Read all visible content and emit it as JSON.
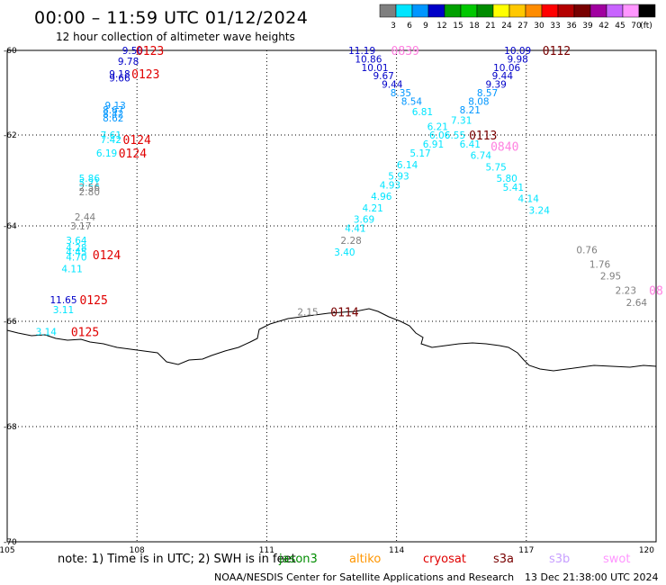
{
  "header": {
    "title": "00:00 – 11:59 UTC 01/12/2024",
    "subtitle": "12 hour collection of altimeter wave heights"
  },
  "legend": {
    "unit": "(ft)",
    "bins": [
      {
        "label": "3",
        "color": "#7f7f7f"
      },
      {
        "label": "6",
        "color": "#00e5ff"
      },
      {
        "label": "9",
        "color": "#0096ff"
      },
      {
        "label": "12",
        "color": "#0000c8"
      },
      {
        "label": "15",
        "color": "#00a000"
      },
      {
        "label": "18",
        "color": "#00c800"
      },
      {
        "label": "21",
        "color": "#008c00"
      },
      {
        "label": "24",
        "color": "#ffff00"
      },
      {
        "label": "27",
        "color": "#ffc800"
      },
      {
        "label": "30",
        "color": "#ff8c00"
      },
      {
        "label": "33",
        "color": "#ff0000"
      },
      {
        "label": "36",
        "color": "#b40000"
      },
      {
        "label": "39",
        "color": "#780000"
      },
      {
        "label": "42",
        "color": "#a000a0"
      },
      {
        "label": "45",
        "color": "#c864ff"
      },
      {
        "label": "70",
        "color": "#ff96ff"
      },
      {
        "label": "",
        "color": "#000000"
      }
    ]
  },
  "axes": {
    "lon_labels": [
      "105",
      "108",
      "111",
      "114",
      "117",
      "120"
    ],
    "lat_labels": [
      "-60",
      "-62",
      "-64",
      "-66",
      "-68",
      "-70"
    ]
  },
  "observations": [
    {
      "text": "9.50",
      "color": "#0000c8",
      "lon": 107.9,
      "lat": -60.0
    },
    {
      "text": "9.78",
      "color": "#0000c8",
      "lon": 107.8,
      "lat": -60.25
    },
    {
      "text": "9.18",
      "color": "#0000c8",
      "lon": 107.6,
      "lat": -60.55
    },
    {
      "text": "9.66",
      "color": "#0000c8",
      "lon": 107.6,
      "lat": -60.65
    },
    {
      "text": "9.13",
      "color": "#0096ff",
      "lon": 107.5,
      "lat": -61.3
    },
    {
      "text": "8.67",
      "color": "#0096ff",
      "lon": 107.45,
      "lat": -61.4
    },
    {
      "text": "8.42",
      "color": "#0096ff",
      "lon": 107.45,
      "lat": -61.5
    },
    {
      "text": "8.62",
      "color": "#0096ff",
      "lon": 107.45,
      "lat": -61.6
    },
    {
      "text": "7.61",
      "color": "#00e5ff",
      "lon": 107.4,
      "lat": -62.0
    },
    {
      "text": "7.42",
      "color": "#00e5ff",
      "lon": 107.4,
      "lat": -62.1
    },
    {
      "text": "6.19",
      "color": "#00e5ff",
      "lon": 107.3,
      "lat": -62.4
    },
    {
      "text": "5.86",
      "color": "#00e5ff",
      "lon": 106.9,
      "lat": -62.95
    },
    {
      "text": "5.21",
      "color": "#00e5ff",
      "lon": 106.9,
      "lat": -63.05
    },
    {
      "text": "2.56",
      "color": "#7f7f7f",
      "lon": 106.9,
      "lat": -63.15
    },
    {
      "text": "2.80",
      "color": "#7f7f7f",
      "lon": 106.9,
      "lat": -63.25
    },
    {
      "text": "2.44",
      "color": "#7f7f7f",
      "lon": 106.8,
      "lat": -63.8
    },
    {
      "text": "3.17",
      "color": "#7f7f7f",
      "lon": 106.7,
      "lat": -64.0
    },
    {
      "text": "3.64",
      "color": "#00e5ff",
      "lon": 106.6,
      "lat": -64.3
    },
    {
      "text": "4.28",
      "color": "#00e5ff",
      "lon": 106.6,
      "lat": -64.45
    },
    {
      "text": "4.45",
      "color": "#00e5ff",
      "lon": 106.6,
      "lat": -64.55
    },
    {
      "text": "4.70",
      "color": "#00e5ff",
      "lon": 106.6,
      "lat": -64.65
    },
    {
      "text": "4.11",
      "color": "#00e5ff",
      "lon": 106.5,
      "lat": -64.9
    },
    {
      "text": "11.65",
      "color": "#0000c8",
      "lon": 106.3,
      "lat": -65.55
    },
    {
      "text": "3.11",
      "color": "#00e5ff",
      "lon": 106.3,
      "lat": -65.75
    },
    {
      "text": "3.14",
      "color": "#00e5ff",
      "lon": 105.9,
      "lat": -66.2
    },
    {
      "text": "11.19",
      "color": "#0000c8",
      "lon": 113.2,
      "lat": -60.0
    },
    {
      "text": "10.86",
      "color": "#0000c8",
      "lon": 113.35,
      "lat": -60.2
    },
    {
      "text": "10.01",
      "color": "#0000c8",
      "lon": 113.5,
      "lat": -60.4
    },
    {
      "text": "9.67",
      "color": "#0000c8",
      "lon": 113.7,
      "lat": -60.6
    },
    {
      "text": "9.44",
      "color": "#0000c8",
      "lon": 113.9,
      "lat": -60.8
    },
    {
      "text": "8.35",
      "color": "#0096ff",
      "lon": 114.1,
      "lat": -61.0
    },
    {
      "text": "8.54",
      "color": "#0096ff",
      "lon": 114.35,
      "lat": -61.2
    },
    {
      "text": "6.81",
      "color": "#00e5ff",
      "lon": 114.6,
      "lat": -61.45
    },
    {
      "text": "6.21",
      "color": "#00e5ff",
      "lon": 114.95,
      "lat": -61.8
    },
    {
      "text": "6.06",
      "color": "#00e5ff",
      "lon": 115.0,
      "lat": -62.0
    },
    {
      "text": "6.91",
      "color": "#00e5ff",
      "lon": 114.85,
      "lat": -62.2
    },
    {
      "text": "5.17",
      "color": "#00e5ff",
      "lon": 114.55,
      "lat": -62.4
    },
    {
      "text": "6.14",
      "color": "#00e5ff",
      "lon": 114.25,
      "lat": -62.65
    },
    {
      "text": "5.93",
      "color": "#00e5ff",
      "lon": 114.05,
      "lat": -62.9
    },
    {
      "text": "4.93",
      "color": "#00e5ff",
      "lon": 113.85,
      "lat": -63.1
    },
    {
      "text": "4.96",
      "color": "#00e5ff",
      "lon": 113.65,
      "lat": -63.35
    },
    {
      "text": "4.21",
      "color": "#00e5ff",
      "lon": 113.45,
      "lat": -63.6
    },
    {
      "text": "3.69",
      "color": "#00e5ff",
      "lon": 113.25,
      "lat": -63.85
    },
    {
      "text": "4.41",
      "color": "#00e5ff",
      "lon": 113.05,
      "lat": -64.05
    },
    {
      "text": "2.28",
      "color": "#7f7f7f",
      "lon": 112.95,
      "lat": -64.3
    },
    {
      "text": "3.40",
      "color": "#00e5ff",
      "lon": 112.8,
      "lat": -64.55
    },
    {
      "text": "10.09",
      "color": "#0000c8",
      "lon": 116.8,
      "lat": -60.0
    },
    {
      "text": "9.98",
      "color": "#0000c8",
      "lon": 116.8,
      "lat": -60.2
    },
    {
      "text": "10.06",
      "color": "#0000c8",
      "lon": 116.55,
      "lat": -60.4
    },
    {
      "text": "9.44",
      "color": "#0000c8",
      "lon": 116.45,
      "lat": -60.6
    },
    {
      "text": "9.39",
      "color": "#0000c8",
      "lon": 116.3,
      "lat": -60.8
    },
    {
      "text": "8.57",
      "color": "#0096ff",
      "lon": 116.1,
      "lat": -61.0
    },
    {
      "text": "8.08",
      "color": "#0096ff",
      "lon": 115.9,
      "lat": -61.2
    },
    {
      "text": "8.21",
      "color": "#0096ff",
      "lon": 115.7,
      "lat": -61.4
    },
    {
      "text": "7.31",
      "color": "#00e5ff",
      "lon": 115.5,
      "lat": -61.65
    },
    {
      "text": "6.55",
      "color": "#00e5ff",
      "lon": 115.35,
      "lat": -62.0
    },
    {
      "text": "6.41",
      "color": "#00e5ff",
      "lon": 115.7,
      "lat": -62.2
    },
    {
      "text": "6.74",
      "color": "#00e5ff",
      "lon": 115.95,
      "lat": -62.45
    },
    {
      "text": "5.75",
      "color": "#00e5ff",
      "lon": 116.3,
      "lat": -62.7
    },
    {
      "text": "5.80",
      "color": "#00e5ff",
      "lon": 116.55,
      "lat": -62.95
    },
    {
      "text": "5.41",
      "color": "#00e5ff",
      "lon": 116.7,
      "lat": -63.15
    },
    {
      "text": "4.14",
      "color": "#00e5ff",
      "lon": 117.05,
      "lat": -63.4
    },
    {
      "text": "3.24",
      "color": "#00e5ff",
      "lon": 117.3,
      "lat": -63.65
    },
    {
      "text": "2.15",
      "color": "#7f7f7f",
      "lon": 111.95,
      "lat": -65.8
    },
    {
      "text": "0.76",
      "color": "#7f7f7f",
      "lon": 118.4,
      "lat": -64.5
    },
    {
      "text": "1.76",
      "color": "#7f7f7f",
      "lon": 118.7,
      "lat": -64.8
    },
    {
      "text": "2.95",
      "color": "#7f7f7f",
      "lon": 118.95,
      "lat": -65.05
    },
    {
      "text": "2.23",
      "color": "#7f7f7f",
      "lon": 119.3,
      "lat": -65.35
    },
    {
      "text": "2.64",
      "color": "#7f7f7f",
      "lon": 119.55,
      "lat": -65.6
    }
  ],
  "timestamps": [
    {
      "text": "0123",
      "color": "#e00000",
      "lon": 108.3,
      "lat": -60.0
    },
    {
      "text": "0123",
      "color": "#e00000",
      "lon": 108.2,
      "lat": -60.55
    },
    {
      "text": "0124",
      "color": "#e00000",
      "lon": 108.0,
      "lat": -62.1
    },
    {
      "text": "0124",
      "color": "#e00000",
      "lon": 107.9,
      "lat": -62.4
    },
    {
      "text": "0124",
      "color": "#e00000",
      "lon": 107.3,
      "lat": -64.6
    },
    {
      "text": "0125",
      "color": "#e00000",
      "lon": 107.0,
      "lat": -65.55
    },
    {
      "text": "0125",
      "color": "#e00000",
      "lon": 106.8,
      "lat": -66.2
    },
    {
      "text": "0839",
      "color": "#ff80e0",
      "lon": 114.2,
      "lat": -60.0
    },
    {
      "text": "0112",
      "color": "#780000",
      "lon": 117.7,
      "lat": -60.0
    },
    {
      "text": "0113",
      "color": "#780000",
      "lon": 116.0,
      "lat": -62.0
    },
    {
      "text": "0840",
      "color": "#ff80e0",
      "lon": 116.5,
      "lat": -62.25
    },
    {
      "text": "0114",
      "color": "#780000",
      "lon": 112.8,
      "lat": -65.8
    },
    {
      "text": "08",
      "color": "#ff80e0",
      "lon": 120.0,
      "lat": -65.35
    }
  ],
  "footer": {
    "note": "note:  1) Time is in UTC;  2) SWH is in feet",
    "satellites": [
      {
        "name": "jason3",
        "color": "#008c00"
      },
      {
        "name": "altiko",
        "color": "#ff9600"
      },
      {
        "name": "cryosat",
        "color": "#e00000"
      },
      {
        "name": "s3a",
        "color": "#780000"
      },
      {
        "name": "s3b",
        "color": "#c8a0ff"
      },
      {
        "name": "swot",
        "color": "#ff96ff"
      }
    ],
    "credit": "NOAA/NESDIS Center for Satellite Applications and Research",
    "generated": "13 Dec 21:38:00 UTC 2024"
  }
}
